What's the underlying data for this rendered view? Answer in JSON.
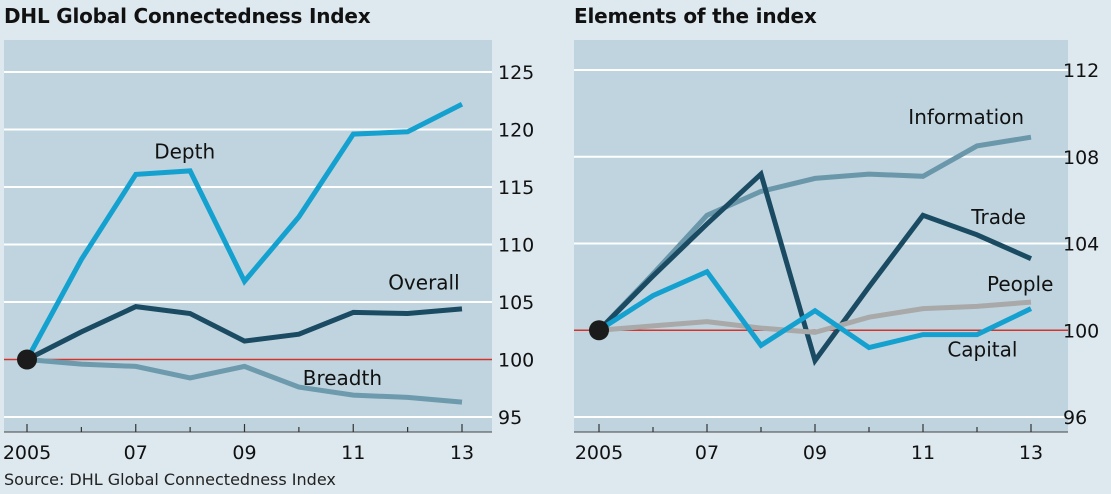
{
  "source": "Source: DHL Global Connectedness Index",
  "chart_data": [
    {
      "type": "line",
      "title": "DHL Global Connectedness Index",
      "x": [
        2005,
        2006,
        2007,
        2008,
        2009,
        2010,
        2011,
        2012,
        2013
      ],
      "xticks": [
        2005,
        2007,
        2009,
        2011,
        2013
      ],
      "xtick_labels": [
        "2005",
        "07",
        "09",
        "11",
        "13"
      ],
      "ylim": [
        95,
        128
      ],
      "yticks": [
        95,
        100,
        105,
        110,
        115,
        120,
        125
      ],
      "ytick_labels": [
        "95",
        "100",
        "105",
        "110",
        "115",
        "120",
        "125"
      ],
      "baseline": 100,
      "grid": true,
      "series": [
        {
          "name": "Depth",
          "color": "#14a1cf",
          "values": [
            100,
            108.7,
            116.1,
            116.4,
            106.8,
            112.4,
            119.6,
            119.8,
            122.2
          ],
          "label_x": 2007.9,
          "label_y": 117.5
        },
        {
          "name": "Overall",
          "color": "#1a4b63",
          "values": [
            100,
            102.4,
            104.6,
            104.0,
            101.6,
            102.2,
            104.1,
            104.0,
            104.4
          ],
          "label_x": 2012.3,
          "label_y": 106.1
        },
        {
          "name": "Breadth",
          "color": "#6e9aae",
          "values": [
            100,
            99.6,
            99.4,
            98.4,
            99.4,
            97.6,
            96.9,
            96.7,
            96.3
          ],
          "label_x": 2010.8,
          "label_y": 97.8
        }
      ]
    },
    {
      "type": "line",
      "title": "Elements of the index",
      "x": [
        2005,
        2006,
        2007,
        2008,
        2009,
        2010,
        2011,
        2012,
        2013
      ],
      "xticks": [
        2005,
        2007,
        2009,
        2011,
        2013
      ],
      "xtick_labels": [
        "2005",
        "07",
        "09",
        "11",
        "13"
      ],
      "ylim": [
        96,
        113.5
      ],
      "yticks": [
        96,
        100,
        104,
        108,
        112
      ],
      "ytick_labels": [
        "96",
        "100",
        "104",
        "108",
        "112"
      ],
      "baseline": 100,
      "grid": true,
      "series": [
        {
          "name": "Information",
          "color": "#6b97ab",
          "values": [
            100,
            102.6,
            105.3,
            106.4,
            107.0,
            107.2,
            107.1,
            108.5,
            108.9
          ],
          "label_x": 2011.8,
          "label_y": 109.5
        },
        {
          "name": "Trade",
          "color": "#1a4b63",
          "values": [
            100,
            102.5,
            104.9,
            107.2,
            98.6,
            102.0,
            105.3,
            104.4,
            103.3
          ],
          "label_x": 2012.4,
          "label_y": 104.9
        },
        {
          "name": "People",
          "color": "#a9a9a9",
          "values": [
            100,
            100.2,
            100.4,
            100.1,
            99.9,
            100.6,
            101.0,
            101.1,
            101.3
          ],
          "label_x": 2012.8,
          "label_y": 101.8
        },
        {
          "name": "Capital",
          "color": "#14a1cf",
          "values": [
            100,
            101.6,
            102.7,
            99.3,
            100.9,
            99.2,
            99.8,
            99.8,
            101.0
          ],
          "label_x": 2012.1,
          "label_y": 98.8
        }
      ]
    }
  ]
}
